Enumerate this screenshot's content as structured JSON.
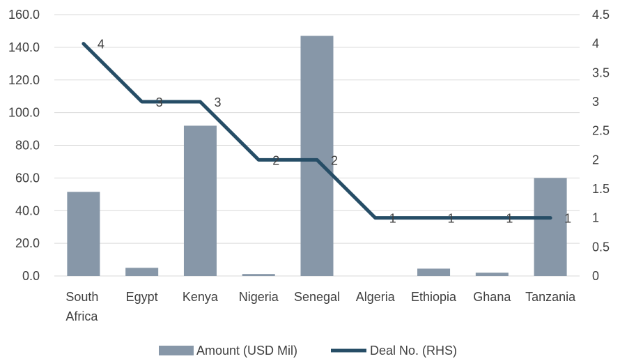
{
  "chart_data": {
    "type": "bar+line",
    "categories": [
      [
        "South",
        "Africa"
      ],
      [
        "Egypt"
      ],
      [
        "Kenya"
      ],
      [
        "Nigeria"
      ],
      [
        "Senegal"
      ],
      [
        "Algeria"
      ],
      [
        "Ethiopia"
      ],
      [
        "Ghana"
      ],
      [
        "Tanzania"
      ]
    ],
    "series": [
      {
        "name": "Amount (USD Mil)",
        "type": "bar",
        "axis": "left",
        "color": "#8797a8",
        "values": [
          51.5,
          5.0,
          92.0,
          1.2,
          147.0,
          0.0,
          4.5,
          2.0,
          60.0
        ]
      },
      {
        "name": "Deal No. (RHS)",
        "type": "line",
        "axis": "right",
        "color": "#264d66",
        "values": [
          4,
          3,
          3,
          2,
          2,
          1,
          1,
          1,
          1
        ]
      }
    ],
    "left_axis": {
      "ylim": [
        0,
        160
      ],
      "ticks": [
        "0.0",
        "20.0",
        "40.0",
        "60.0",
        "80.0",
        "100.0",
        "120.0",
        "140.0",
        "160.0"
      ]
    },
    "right_axis": {
      "ylim": [
        0,
        4.5
      ],
      "ticks": [
        "0",
        "0.5",
        "1",
        "1.5",
        "2",
        "2.5",
        "3",
        "3.5",
        "4",
        "4.5"
      ]
    },
    "grid": true,
    "legend_position": "bottom"
  }
}
